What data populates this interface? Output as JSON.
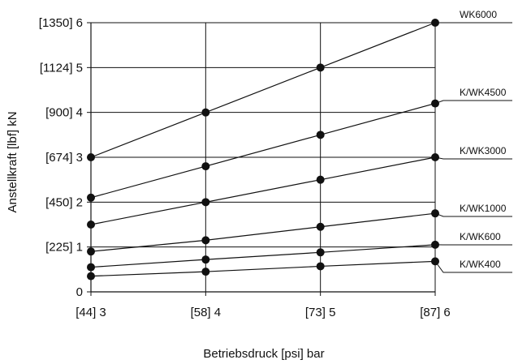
{
  "chart_data": {
    "type": "line",
    "title": "",
    "xlabel": "Betriebsdruck [psi] bar",
    "ylabel": "Anstellkraft [lbf] kN",
    "x": [
      3,
      4,
      5,
      6
    ],
    "x_tick_labels": [
      "[44] 3",
      "[58] 4",
      "[73] 5",
      "[87] 6"
    ],
    "xlim": [
      3,
      6
    ],
    "ylim": [
      0,
      6
    ],
    "y_ticks": [
      0,
      1,
      2,
      3,
      4,
      5,
      6
    ],
    "y_tick_labels": [
      "0",
      "[225] 1",
      "[450] 2",
      "[674] 3",
      "[900] 4",
      "[1124] 5",
      "[1350] 6"
    ],
    "grid": true,
    "series": [
      {
        "name": "WK6000",
        "values": [
          3.0,
          4.0,
          5.0,
          6.0
        ]
      },
      {
        "name": "K/WK4500",
        "values": [
          2.1,
          2.8,
          3.5,
          4.2
        ]
      },
      {
        "name": "K/WK3000",
        "values": [
          1.5,
          2.0,
          2.5,
          3.0
        ]
      },
      {
        "name": "K/WK1000",
        "values": [
          0.9,
          1.15,
          1.45,
          1.75
        ]
      },
      {
        "name": "K/WK600",
        "values": [
          0.55,
          0.72,
          0.88,
          1.05
        ]
      },
      {
        "name": "K/WK400",
        "values": [
          0.35,
          0.45,
          0.57,
          0.68
        ]
      }
    ]
  }
}
